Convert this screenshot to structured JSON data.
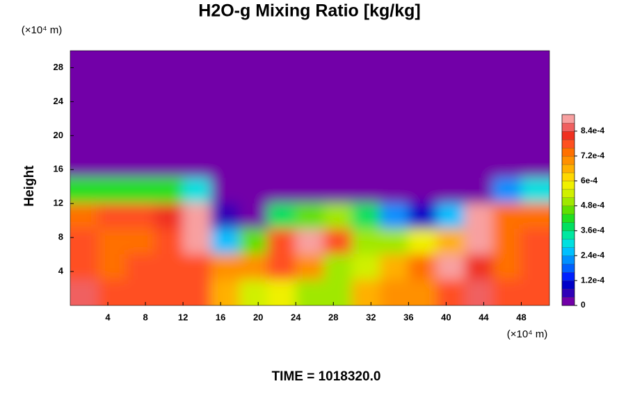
{
  "chart_data": {
    "type": "contour",
    "title": "H2O-g Mixing Ratio [kg/kg]",
    "y_label": "Height",
    "y_unit": "(×10⁴ m)",
    "x_unit": "(×10⁴ m)",
    "footer": "TIME = 1018320.0",
    "xlim": [
      0,
      51
    ],
    "ylim": [
      0,
      30
    ],
    "xticks": [
      4,
      8,
      12,
      16,
      20,
      24,
      28,
      32,
      36,
      40,
      44,
      48
    ],
    "yticks": [
      4,
      8,
      12,
      16,
      20,
      24,
      28
    ],
    "x": [
      1.5,
      4.5,
      7.5,
      10.5,
      13.5,
      16.5,
      19.5,
      22.5,
      25.5,
      28.5,
      31.5,
      34.5,
      37.5,
      40.5,
      43.5,
      46.5,
      49.5
    ],
    "y": [
      28.5,
      25.5,
      22.5,
      19.5,
      16.5,
      13.5,
      10.5,
      7.5,
      4.5,
      1.5
    ],
    "z": [
      [
        0,
        0,
        0,
        0,
        0,
        0,
        0,
        0,
        0,
        0,
        0,
        0,
        0,
        0,
        0,
        0,
        0
      ],
      [
        0,
        0,
        0,
        0,
        0,
        0,
        0,
        0,
        0,
        0,
        0,
        0,
        0,
        0,
        0,
        0,
        0
      ],
      [
        0,
        0,
        0,
        0,
        0,
        0,
        0,
        0,
        0,
        0,
        0,
        0,
        0,
        0,
        0,
        0,
        0
      ],
      [
        0,
        0,
        0,
        0,
        0,
        0,
        0,
        0,
        0,
        0,
        0,
        0,
        0,
        0,
        0,
        0,
        0
      ],
      [
        0,
        0,
        0,
        0,
        0,
        0,
        0,
        0,
        0,
        0,
        0,
        0,
        0,
        0,
        0,
        0,
        0
      ],
      [
        0.0004,
        0.0004,
        0.0004,
        0.0004,
        0.0003,
        0,
        0,
        0,
        0,
        0,
        0,
        0,
        0,
        0,
        0,
        0.0002,
        0.0003
      ],
      [
        0.00072,
        0.00076,
        0.00076,
        0.0008,
        0.00088,
        4e-05,
        0,
        0.00036,
        0.00044,
        0.00048,
        0.00036,
        0.0002,
        8e-05,
        0.00024,
        0.00088,
        0.00072,
        0.00072
      ],
      [
        0.00076,
        0.00072,
        0.00072,
        0.00076,
        0.00088,
        0.00028,
        0.00044,
        0.00076,
        0.00088,
        0.00076,
        0.00052,
        0.00048,
        0.0006,
        0.00064,
        0.00088,
        0.00072,
        0.00076
      ],
      [
        0.00076,
        0.00072,
        0.00076,
        0.00076,
        0.00076,
        0.00068,
        0.00068,
        0.00076,
        0.00068,
        0.00052,
        0.00056,
        0.00064,
        0.00072,
        0.00088,
        0.0008,
        0.00072,
        0.00076
      ],
      [
        0.00084,
        0.00076,
        0.00076,
        0.00076,
        0.00076,
        0.00064,
        0.00056,
        0.0006,
        0.00052,
        0.00052,
        0.00064,
        0.00068,
        0.00068,
        0.00076,
        0.00084,
        0.00076,
        0.00076
      ]
    ],
    "zlim": [
      0,
      0.00092
    ],
    "zticks": [
      0,
      {
        "value": 0.00012,
        "label": "1.2e-4"
      },
      {
        "value": 0.00024,
        "label": "2.4e-4"
      },
      {
        "value": 0.00036,
        "label": "3.6e-4"
      },
      {
        "value": 0.00048,
        "label": "4.8e-4"
      },
      {
        "value": 0.0006,
        "label": "6e-4"
      },
      {
        "value": 0.00072,
        "label": "7.2e-4"
      },
      {
        "value": 0.00084,
        "label": "8.4e-4"
      }
    ],
    "colors": [
      "#7200a8",
      "#3000b8",
      "#0000c8",
      "#0020ff",
      "#0060ff",
      "#0090ff",
      "#00c0ff",
      "#00e0e0",
      "#00e8a0",
      "#00e060",
      "#20e020",
      "#60e000",
      "#a0e800",
      "#d0f000",
      "#f0f000",
      "#ffd800",
      "#ffb000",
      "#ff9000",
      "#ff7000",
      "#ff5020",
      "#f03020",
      "#f06060",
      "#f8a0a0"
    ]
  }
}
